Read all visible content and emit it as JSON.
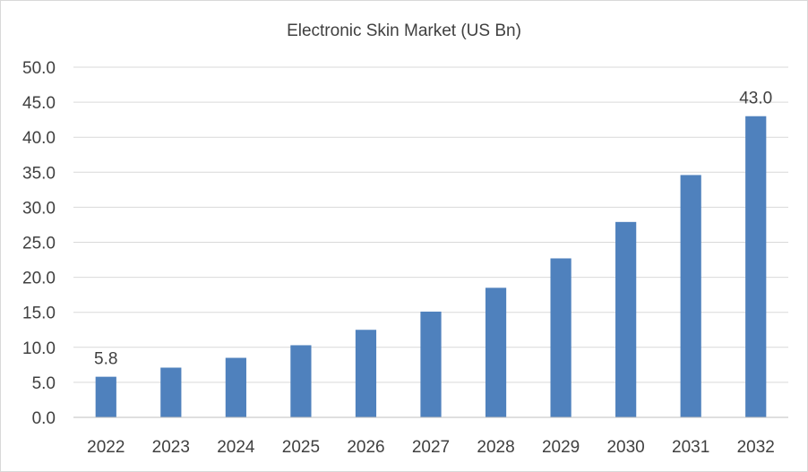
{
  "chart_data": {
    "type": "bar",
    "title": "Electronic Skin Market (US Bn)",
    "xlabel": "",
    "ylabel": "",
    "categories": [
      "2022",
      "2023",
      "2024",
      "2025",
      "2026",
      "2027",
      "2028",
      "2029",
      "2030",
      "2031",
      "2032"
    ],
    "series": [
      {
        "values": [
          5.8,
          7.1,
          8.5,
          10.3,
          12.5,
          15.1,
          18.5,
          22.7,
          27.9,
          34.6,
          43.0
        ],
        "color": "#4f81bd"
      }
    ],
    "data_labels": [
      {
        "category": "2022",
        "text": "5.8"
      },
      {
        "category": "2032",
        "text": "43.0"
      }
    ],
    "ylim": [
      0,
      50
    ],
    "ytick_step": 5,
    "ytick_labels": [
      "0.0",
      "5.0",
      "10.0",
      "15.0",
      "20.0",
      "25.0",
      "30.0",
      "35.0",
      "40.0",
      "45.0",
      "50.0"
    ],
    "grid": true,
    "legend": "none"
  }
}
